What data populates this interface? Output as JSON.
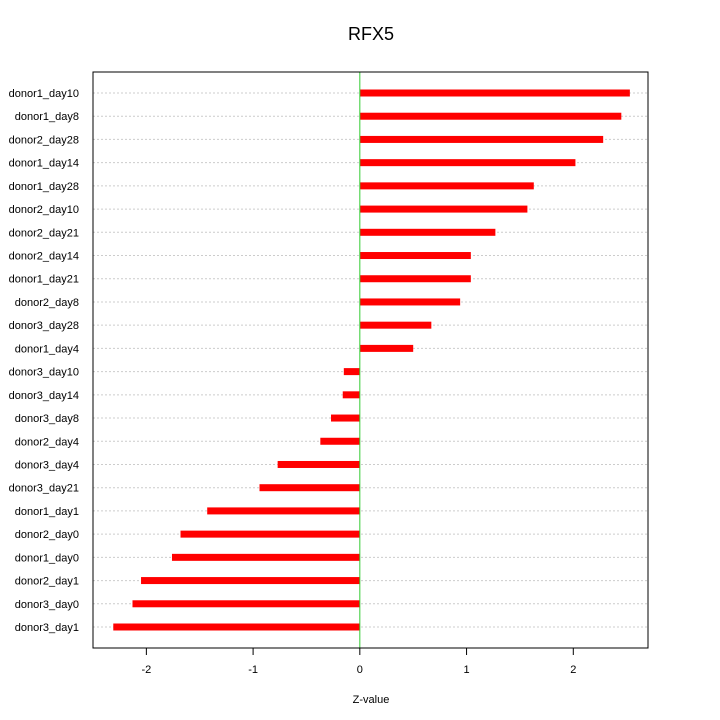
{
  "chart_data": {
    "type": "bar",
    "orientation": "horizontal",
    "title": "RFX5",
    "xlabel": "Z-value",
    "ylabel": "",
    "xlim": [
      -2.5,
      2.7
    ],
    "xticks": [
      -2,
      -1,
      0,
      1,
      2
    ],
    "grid": true,
    "zero_line_color": "#33cc33",
    "bar_color": "#ff0000",
    "categories": [
      "donor1_day10",
      "donor1_day8",
      "donor2_day28",
      "donor1_day14",
      "donor1_day28",
      "donor2_day10",
      "donor2_day21",
      "donor2_day14",
      "donor1_day21",
      "donor2_day8",
      "donor3_day28",
      "donor1_day4",
      "donor3_day10",
      "donor3_day14",
      "donor3_day8",
      "donor2_day4",
      "donor3_day4",
      "donor3_day21",
      "donor1_day1",
      "donor2_day0",
      "donor1_day0",
      "donor2_day1",
      "donor3_day0",
      "donor3_day1"
    ],
    "values": [
      2.53,
      2.45,
      2.28,
      2.02,
      1.63,
      1.57,
      1.27,
      1.04,
      1.04,
      0.94,
      0.67,
      0.5,
      -0.15,
      -0.16,
      -0.27,
      -0.37,
      -0.77,
      -0.94,
      -1.43,
      -1.68,
      -1.76,
      -2.05,
      -2.13,
      -2.31
    ]
  }
}
